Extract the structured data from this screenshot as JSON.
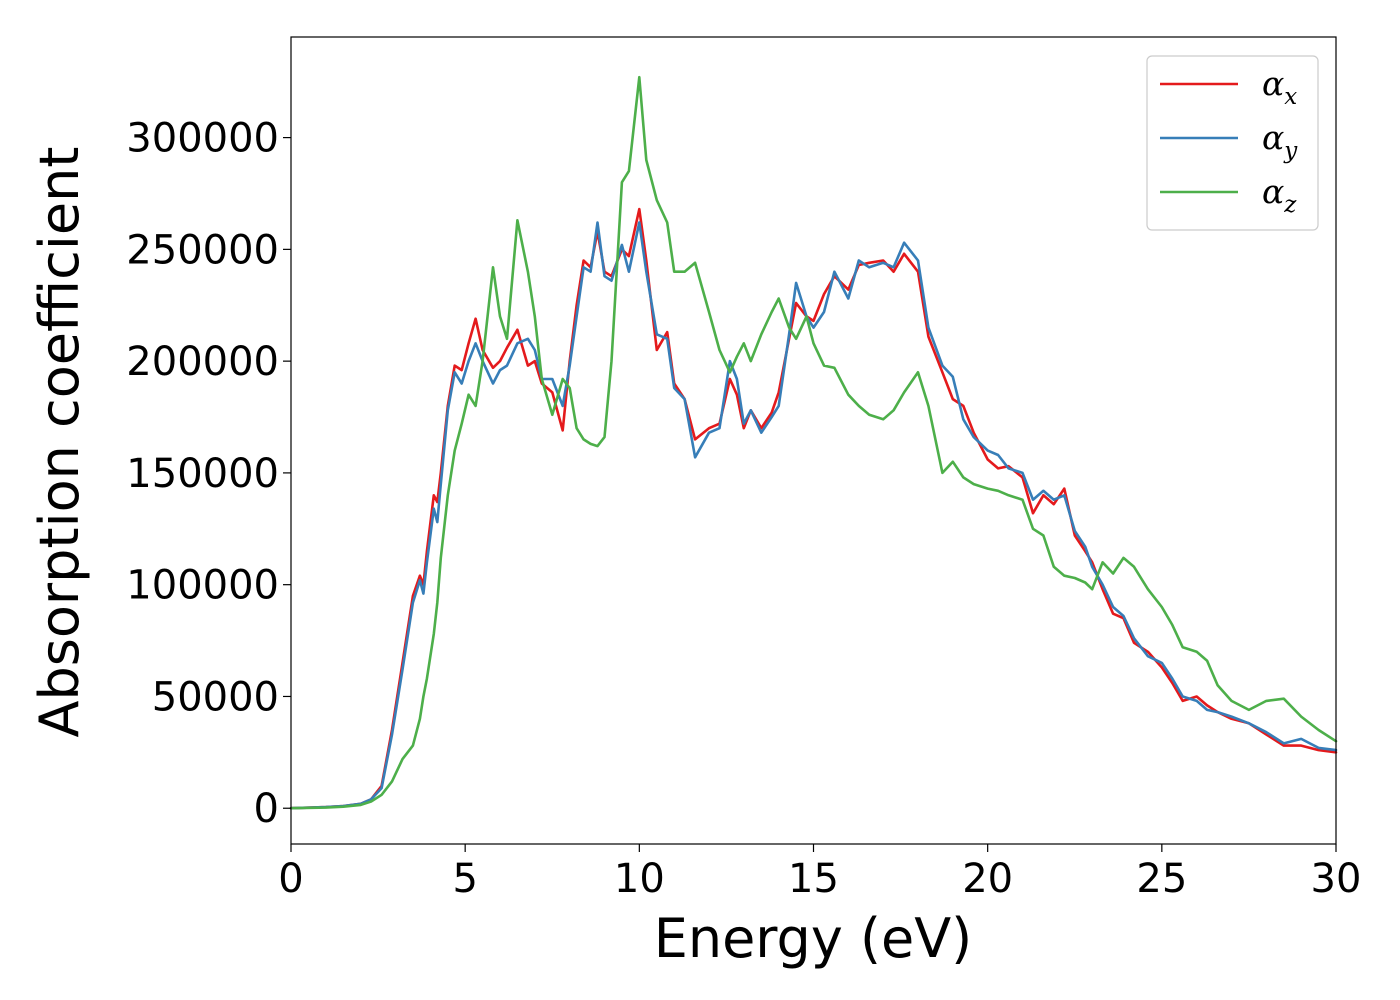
{
  "chart_data": {
    "type": "line",
    "xlabel": "Energy (eV)",
    "ylabel": "Absorption coefficient",
    "xlim": [
      0,
      30
    ],
    "ylim": [
      -16000,
      345000
    ],
    "xticks": [
      "0",
      "5",
      "10",
      "15",
      "20",
      "25",
      "30"
    ],
    "yticks": [
      "0",
      "50000",
      "100000",
      "150000",
      "200000",
      "250000",
      "300000"
    ],
    "grid": false,
    "legend_position": "top-right",
    "series": [
      {
        "name": "α",
        "subscript": "x",
        "color": "#e41a1c",
        "x": [
          0,
          1,
          1.5,
          2,
          2.3,
          2.6,
          2.9,
          3.2,
          3.5,
          3.7,
          3.8,
          3.9,
          4.1,
          4.2,
          4.3,
          4.5,
          4.7,
          4.9,
          5.1,
          5.3,
          5.5,
          5.8,
          6.0,
          6.2,
          6.5,
          6.8,
          7.0,
          7.2,
          7.5,
          7.8,
          8.0,
          8.2,
          8.4,
          8.6,
          8.8,
          9.0,
          9.2,
          9.5,
          9.7,
          10.0,
          10.2,
          10.5,
          10.8,
          11.0,
          11.3,
          11.6,
          12.0,
          12.3,
          12.6,
          12.8,
          13.0,
          13.2,
          13.5,
          13.8,
          14.0,
          14.3,
          14.5,
          14.8,
          15.0,
          15.3,
          15.6,
          16.0,
          16.3,
          16.6,
          17.0,
          17.3,
          17.6,
          18.0,
          18.3,
          18.7,
          19.0,
          19.3,
          19.6,
          20.0,
          20.3,
          20.6,
          21.0,
          21.3,
          21.6,
          21.9,
          22.2,
          22.5,
          22.8,
          23.0,
          23.3,
          23.6,
          23.9,
          24.2,
          24.6,
          25.0,
          25.3,
          25.6,
          26.0,
          26.3,
          26.6,
          27.0,
          27.5,
          28.0,
          28.5,
          29.0,
          29.5,
          30.0
        ],
        "y": [
          0,
          500,
          1000,
          2000,
          4000,
          10000,
          35000,
          65000,
          95000,
          104000,
          100000,
          115000,
          140000,
          137000,
          150000,
          180000,
          198000,
          196000,
          208000,
          219000,
          205000,
          197000,
          200000,
          206000,
          214000,
          198000,
          200000,
          190000,
          186000,
          169000,
          200000,
          225000,
          245000,
          242000,
          258000,
          240000,
          238000,
          250000,
          247000,
          268000,
          245000,
          205000,
          213000,
          190000,
          183000,
          165000,
          170000,
          172000,
          192000,
          185000,
          170000,
          178000,
          170000,
          177000,
          186000,
          210000,
          226000,
          220000,
          218000,
          230000,
          238000,
          232000,
          243000,
          244000,
          245000,
          240000,
          248000,
          240000,
          211000,
          195000,
          183000,
          180000,
          168000,
          156000,
          152000,
          153000,
          148000,
          132000,
          140000,
          136000,
          143000,
          122000,
          115000,
          110000,
          98000,
          87000,
          85000,
          74000,
          70000,
          63000,
          56000,
          48000,
          50000,
          46000,
          43000,
          40000,
          38000,
          33000,
          28000,
          28000,
          26000,
          25000
        ]
      },
      {
        "name": "α",
        "subscript": "y",
        "color": "#377eb8",
        "x": [
          0,
          1,
          1.5,
          2,
          2.3,
          2.6,
          2.9,
          3.2,
          3.5,
          3.7,
          3.8,
          3.9,
          4.1,
          4.2,
          4.3,
          4.5,
          4.7,
          4.9,
          5.1,
          5.3,
          5.5,
          5.8,
          6.0,
          6.2,
          6.5,
          6.8,
          7.0,
          7.2,
          7.5,
          7.8,
          8.0,
          8.2,
          8.4,
          8.6,
          8.8,
          9.0,
          9.2,
          9.5,
          9.7,
          10.0,
          10.2,
          10.5,
          10.8,
          11.0,
          11.3,
          11.6,
          12.0,
          12.3,
          12.6,
          12.8,
          13.0,
          13.2,
          13.5,
          13.8,
          14.0,
          14.3,
          14.5,
          14.8,
          15.0,
          15.3,
          15.6,
          16.0,
          16.3,
          16.6,
          17.0,
          17.3,
          17.6,
          18.0,
          18.3,
          18.7,
          19.0,
          19.3,
          19.6,
          20.0,
          20.3,
          20.6,
          21.0,
          21.3,
          21.6,
          21.9,
          22.2,
          22.5,
          22.8,
          23.0,
          23.3,
          23.6,
          23.9,
          24.2,
          24.6,
          25.0,
          25.3,
          25.6,
          26.0,
          26.3,
          26.6,
          27.0,
          27.5,
          28.0,
          28.5,
          29.0,
          29.5,
          30.0
        ],
        "y": [
          0,
          500,
          1000,
          2000,
          4000,
          9000,
          33000,
          62000,
          92000,
          102000,
          96000,
          110000,
          134000,
          128000,
          145000,
          178000,
          195000,
          190000,
          200000,
          208000,
          200000,
          190000,
          196000,
          198000,
          208000,
          210000,
          205000,
          192000,
          192000,
          180000,
          198000,
          220000,
          242000,
          240000,
          262000,
          238000,
          236000,
          252000,
          240000,
          262000,
          240000,
          212000,
          210000,
          188000,
          183000,
          157000,
          168000,
          170000,
          200000,
          192000,
          172000,
          178000,
          168000,
          175000,
          180000,
          212000,
          235000,
          220000,
          215000,
          222000,
          240000,
          228000,
          245000,
          242000,
          244000,
          242000,
          253000,
          245000,
          215000,
          198000,
          193000,
          174000,
          166000,
          160000,
          158000,
          152000,
          150000,
          138000,
          142000,
          138000,
          140000,
          124000,
          117000,
          108000,
          100000,
          90000,
          86000,
          76000,
          68000,
          65000,
          58000,
          50000,
          48000,
          44000,
          43000,
          41000,
          38000,
          34000,
          29000,
          31000,
          27000,
          26000
        ]
      },
      {
        "name": "α",
        "subscript": "z",
        "color": "#4daf4a",
        "x": [
          0,
          1,
          1.5,
          2,
          2.3,
          2.6,
          2.9,
          3.2,
          3.5,
          3.7,
          3.8,
          3.9,
          4.1,
          4.2,
          4.3,
          4.5,
          4.7,
          4.9,
          5.1,
          5.3,
          5.5,
          5.8,
          6.0,
          6.2,
          6.5,
          6.8,
          7.0,
          7.2,
          7.5,
          7.8,
          8.0,
          8.2,
          8.4,
          8.6,
          8.8,
          9.0,
          9.2,
          9.5,
          9.7,
          10.0,
          10.2,
          10.5,
          10.8,
          11.0,
          11.3,
          11.6,
          12.0,
          12.3,
          12.6,
          12.8,
          13.0,
          13.2,
          13.5,
          13.8,
          14.0,
          14.3,
          14.5,
          14.8,
          15.0,
          15.3,
          15.6,
          16.0,
          16.3,
          16.6,
          17.0,
          17.3,
          17.6,
          18.0,
          18.3,
          18.7,
          19.0,
          19.3,
          19.6,
          20.0,
          20.3,
          20.6,
          21.0,
          21.3,
          21.6,
          21.9,
          22.2,
          22.5,
          22.8,
          23.0,
          23.3,
          23.6,
          23.9,
          24.2,
          24.6,
          25.0,
          25.3,
          25.6,
          26.0,
          26.3,
          26.6,
          27.0,
          27.5,
          28.0,
          28.5,
          29.0,
          29.5,
          30.0
        ],
        "y": [
          0,
          300,
          700,
          1500,
          3000,
          6000,
          12000,
          22000,
          28000,
          40000,
          50000,
          58000,
          78000,
          92000,
          112000,
          140000,
          160000,
          172000,
          185000,
          180000,
          200000,
          242000,
          220000,
          210000,
          263000,
          240000,
          220000,
          192000,
          176000,
          192000,
          188000,
          170000,
          165000,
          163000,
          162000,
          166000,
          200000,
          280000,
          285000,
          327000,
          290000,
          272000,
          262000,
          240000,
          240000,
          244000,
          222000,
          205000,
          195000,
          202000,
          208000,
          200000,
          212000,
          222000,
          228000,
          215000,
          210000,
          220000,
          208000,
          198000,
          197000,
          185000,
          180000,
          176000,
          174000,
          178000,
          186000,
          195000,
          180000,
          150000,
          155000,
          148000,
          145000,
          143000,
          142000,
          140000,
          138000,
          125000,
          122000,
          108000,
          104000,
          103000,
          101000,
          98000,
          110000,
          105000,
          112000,
          108000,
          98000,
          90000,
          82000,
          72000,
          70000,
          66000,
          55000,
          48000,
          44000,
          48000,
          49000,
          41000,
          35000,
          30000
        ]
      }
    ]
  }
}
